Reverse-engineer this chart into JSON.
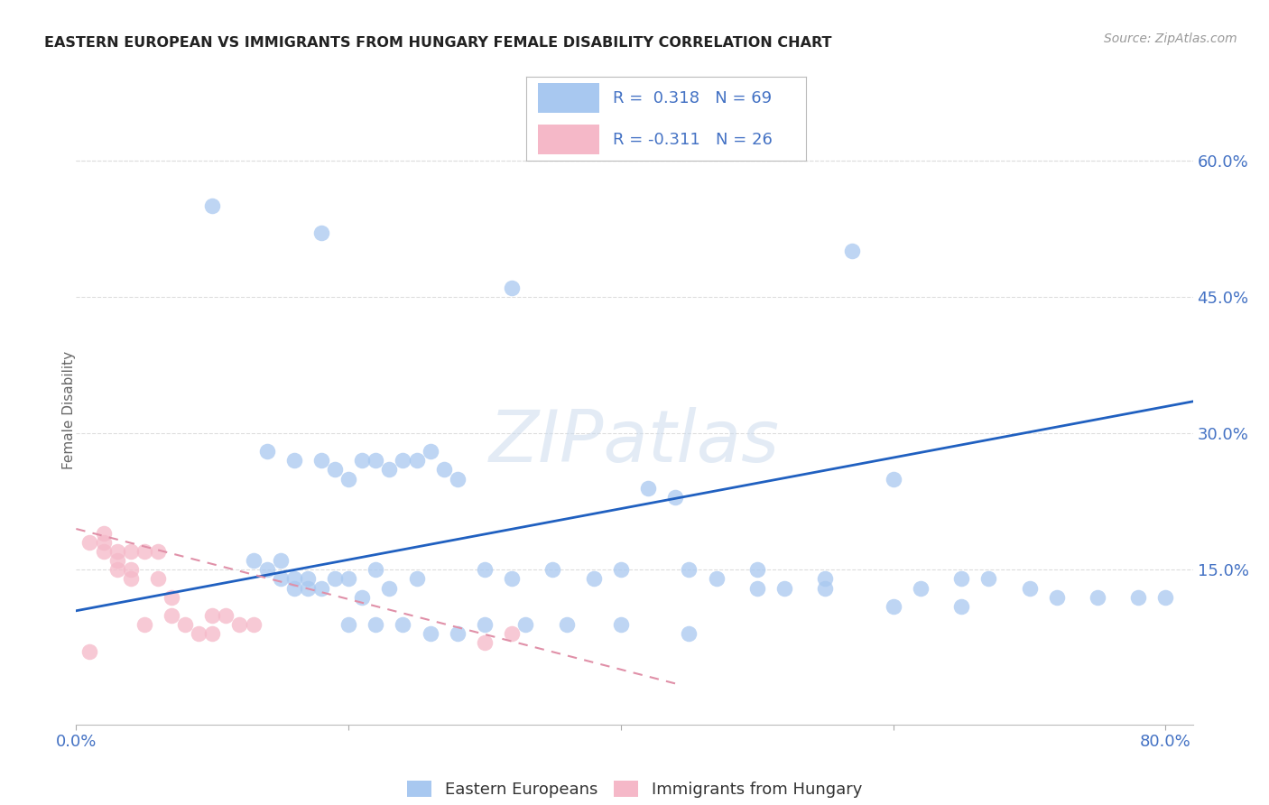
{
  "title": "EASTERN EUROPEAN VS IMMIGRANTS FROM HUNGARY FEMALE DISABILITY CORRELATION CHART",
  "source": "Source: ZipAtlas.com",
  "ylabel": "Female Disability",
  "ytick_vals": [
    0.15,
    0.3,
    0.45,
    0.6
  ],
  "ytick_labels": [
    "15.0%",
    "30.0%",
    "45.0%",
    "60.0%"
  ],
  "xlim": [
    0.0,
    0.82
  ],
  "ylim": [
    -0.02,
    0.67
  ],
  "blue_color": "#a8c8f0",
  "pink_color": "#f5b8c8",
  "trend_blue_color": "#2060c0",
  "trend_pink_color": "#e090a8",
  "watermark": "ZIPatlas",
  "blue_scatter_x": [
    0.1,
    0.18,
    0.32,
    0.14,
    0.16,
    0.18,
    0.19,
    0.2,
    0.21,
    0.22,
    0.23,
    0.24,
    0.25,
    0.26,
    0.27,
    0.28,
    0.15,
    0.17,
    0.19,
    0.21,
    0.23,
    0.25,
    0.16,
    0.18,
    0.2,
    0.22,
    0.3,
    0.32,
    0.35,
    0.38,
    0.4,
    0.42,
    0.44,
    0.45,
    0.47,
    0.5,
    0.52,
    0.55,
    0.57,
    0.6,
    0.62,
    0.65,
    0.67,
    0.7,
    0.72,
    0.75,
    0.78,
    0.8,
    0.13,
    0.14,
    0.15,
    0.16,
    0.17,
    0.2,
    0.22,
    0.24,
    0.26,
    0.28,
    0.3,
    0.33,
    0.36,
    0.4,
    0.45,
    0.5,
    0.55,
    0.6,
    0.65
  ],
  "blue_scatter_y": [
    0.55,
    0.52,
    0.46,
    0.28,
    0.27,
    0.27,
    0.26,
    0.25,
    0.27,
    0.27,
    0.26,
    0.27,
    0.27,
    0.28,
    0.26,
    0.25,
    0.16,
    0.14,
    0.14,
    0.12,
    0.13,
    0.14,
    0.13,
    0.13,
    0.14,
    0.15,
    0.15,
    0.14,
    0.15,
    0.14,
    0.15,
    0.24,
    0.23,
    0.15,
    0.14,
    0.15,
    0.13,
    0.14,
    0.5,
    0.25,
    0.13,
    0.14,
    0.14,
    0.13,
    0.12,
    0.12,
    0.12,
    0.12,
    0.16,
    0.15,
    0.14,
    0.14,
    0.13,
    0.09,
    0.09,
    0.09,
    0.08,
    0.08,
    0.09,
    0.09,
    0.09,
    0.09,
    0.08,
    0.13,
    0.13,
    0.11,
    0.11
  ],
  "pink_scatter_x": [
    0.01,
    0.01,
    0.02,
    0.02,
    0.02,
    0.03,
    0.03,
    0.03,
    0.04,
    0.04,
    0.04,
    0.05,
    0.05,
    0.06,
    0.06,
    0.07,
    0.07,
    0.08,
    0.09,
    0.1,
    0.1,
    0.11,
    0.12,
    0.13,
    0.3,
    0.32
  ],
  "pink_scatter_y": [
    0.06,
    0.18,
    0.17,
    0.18,
    0.19,
    0.15,
    0.16,
    0.17,
    0.14,
    0.15,
    0.17,
    0.09,
    0.17,
    0.14,
    0.17,
    0.12,
    0.1,
    0.09,
    0.08,
    0.08,
    0.1,
    0.1,
    0.09,
    0.09,
    0.07,
    0.08
  ],
  "blue_trend_x": [
    0.0,
    0.82
  ],
  "blue_trend_y": [
    0.105,
    0.335
  ],
  "pink_trend_x": [
    0.0,
    0.44
  ],
  "pink_trend_y": [
    0.195,
    0.025
  ]
}
